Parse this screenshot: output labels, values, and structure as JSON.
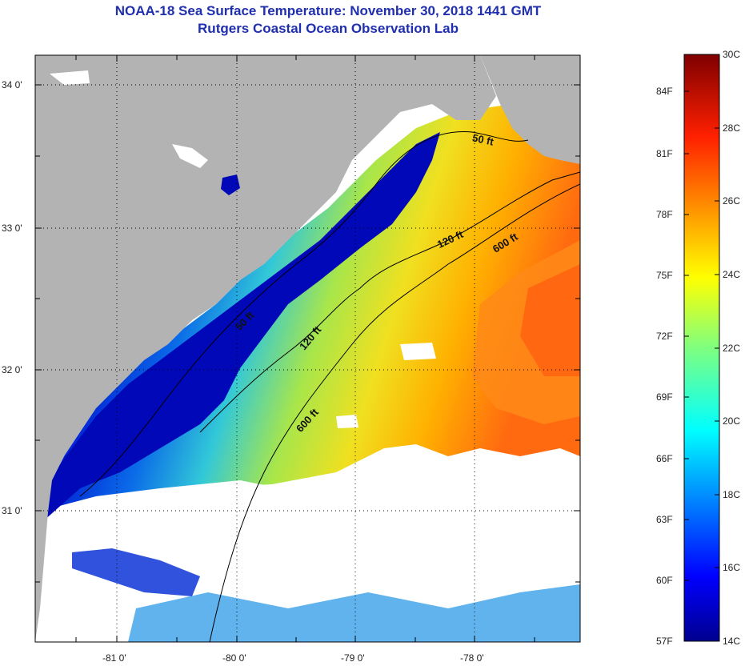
{
  "header": {
    "title": "NOAA-18 Sea Surface Temperature:  November 30, 2018 1441 GMT",
    "subtitle": "Rutgers Coastal Ocean Observation Lab"
  },
  "map": {
    "lat_ticks": [
      "34 0'",
      "33 0'",
      "32 0'",
      "31 0'"
    ],
    "lon_ticks": [
      "-81 0'",
      "-80 0'",
      "-79 0'",
      "-78 0'"
    ],
    "isobaths": [
      {
        "label": "50 ft"
      },
      {
        "label": "120 ft"
      },
      {
        "label": "600 ft"
      }
    ],
    "isobath_label_instances": [
      "50 ft",
      "120 ft",
      "600 ft",
      "50 ft",
      "120 ft",
      "600 ft"
    ],
    "colors": {
      "land": "#b3b3b3",
      "cloud": "#ffffff",
      "grid": "#000000"
    }
  },
  "colorbar": {
    "f_labels": [
      "84F",
      "81F",
      "78F",
      "75F",
      "72F",
      "69F",
      "66F",
      "63F",
      "60F",
      "57F"
    ],
    "c_labels": [
      "30C",
      "28C",
      "26C",
      "24C",
      "22C",
      "20C",
      "18C",
      "16C",
      "14C"
    ],
    "range_c": [
      14,
      30
    ]
  }
}
